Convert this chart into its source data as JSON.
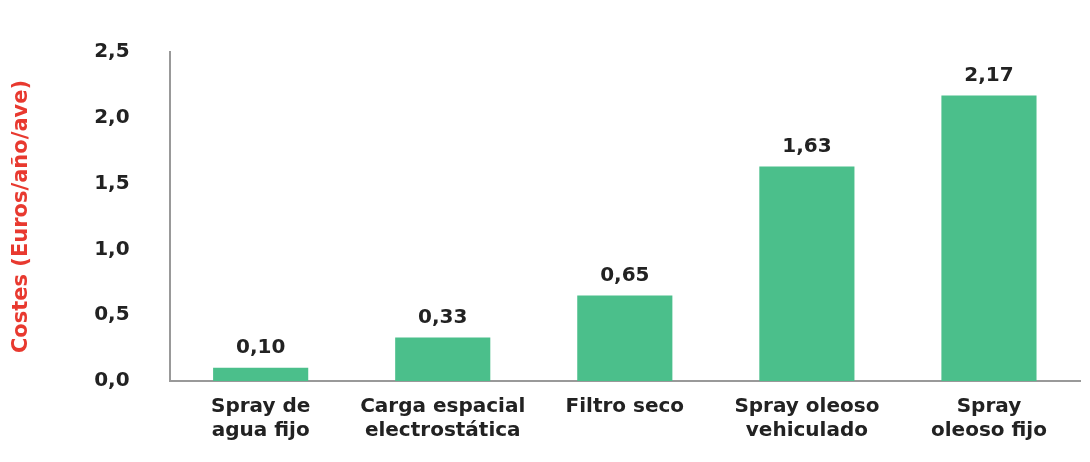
{
  "chart_data": {
    "type": "bar",
    "ylabel": "Costes (Euros/año/ave)",
    "categories": [
      "Spray de agua fijo",
      "Carga espacial electrostática",
      "Filtro seco",
      "Spray oleoso vehiculado",
      "Spray oleoso fijo"
    ],
    "values": [
      0.1,
      0.33,
      0.65,
      1.63,
      2.17
    ],
    "color": "#4bbf8b",
    "ylim": [
      0,
      2.5
    ],
    "yticks": [
      {
        "value": 0,
        "label": "0,0"
      },
      {
        "value": 0.5,
        "label": "0,5"
      },
      {
        "value": 1,
        "label": "1,0"
      },
      {
        "value": 1.5,
        "label": "1,5"
      },
      {
        "value": 2,
        "label": "2,0"
      },
      {
        "value": 2.5,
        "label": "2,5"
      }
    ],
    "value_labels": [
      "0,10",
      "0,33",
      "0,65",
      "1,63",
      "2,17"
    ],
    "grid": false,
    "legend": false
  }
}
